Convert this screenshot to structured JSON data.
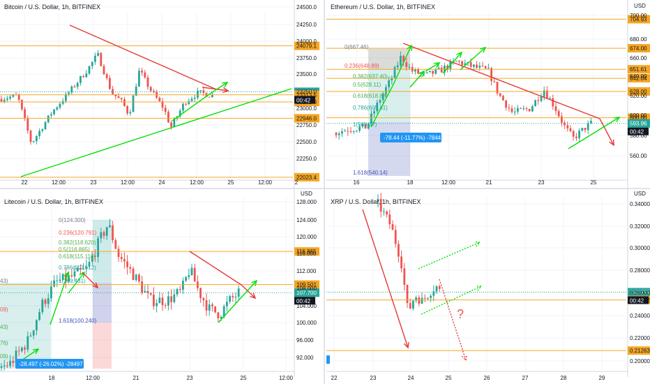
{
  "colors": {
    "up": "#26a69a",
    "down": "#ef5350",
    "level": "#f5a623",
    "trend_red": "#e53935",
    "trend_green": "#00e000",
    "grid": "#f0f3fa",
    "axis_text": "#131722",
    "price_blue": "#2196f3",
    "fib_green": "#4caf50"
  },
  "chart_data": [
    {
      "type": "candlestick",
      "title": "Bitcoin / U.S. Dollar, 1h, BITFINEX",
      "y_ticks": [
        "24500.0",
        "24250.0",
        "24000.0",
        "23750.0",
        "23500.0",
        "23250.0",
        "23000.0",
        "22750.0",
        "22500.0",
        "22250.0"
      ],
      "x_ticks": [
        "22",
        "12:00",
        "23",
        "12:00",
        "24",
        "12:00",
        "25",
        "12:00",
        "2"
      ],
      "ylim": [
        22000,
        24600
      ],
      "levels": [
        {
          "label": "24079.1",
          "value": 24079.1
        },
        {
          "label": "23361.0",
          "value": 23361.0,
          "highlight": true
        },
        {
          "label": "23313.5",
          "value": 23313.5
        },
        {
          "label": "23201.0",
          "value": 23201.0
        },
        {
          "label": "22946.0",
          "value": 22946.0
        },
        {
          "label": "22023.4",
          "value": 22023.4
        }
      ],
      "countdown": "00:42"
    },
    {
      "type": "candlestick",
      "title": "Ethereum / U.S. Dollar, 1h, BITFINEX",
      "currency": "USD",
      "y_ticks": [
        "700.00",
        "680.00",
        "660.00",
        "640.00",
        "620.00",
        "600.00",
        "580.00",
        "560.00",
        "540.00"
      ],
      "x_ticks": [
        "16",
        "18",
        "12:00",
        "21",
        "23",
        "25"
      ],
      "ylim": [
        535,
        712
      ],
      "levels": [
        {
          "label": "704.93",
          "value": 704.93
        },
        {
          "label": "674.00",
          "value": 674.0
        },
        {
          "label": "651.61",
          "value": 651.61
        },
        {
          "label": "642.04",
          "value": 642.04
        },
        {
          "label": "628.00",
          "value": 628.0
        },
        {
          "label": "600.00",
          "value": 600.0
        },
        {
          "label": "593.96",
          "value": 593.96,
          "highlight": true
        }
      ],
      "fib_labels": [
        "0(667.46)",
        "0.236(648.89)",
        "0.382(637.40)",
        "0.5(628.11)",
        "0.618(618.83)",
        "0.786(605.61)",
        "1(588.77)",
        "1.618(540.14)"
      ],
      "measure": "-78.44 (-11.77%) -7844",
      "countdown": "00:42"
    },
    {
      "type": "candlestick",
      "title": "Litecoin / U.S. Dollar, 1h, BITFINEX",
      "currency": "USD",
      "y_ticks": [
        "128.000",
        "124.000",
        "120.000",
        "116.000",
        "112.000",
        "108.000",
        "104.000",
        "100.000",
        "96.000",
        "92.000"
      ],
      "x_ticks": [
        "18",
        "12:00",
        "21",
        "23",
        "25",
        "12:00"
      ],
      "ylim": [
        90.5,
        129
      ],
      "levels": [
        {
          "label": "116.865",
          "value": 116.865
        },
        {
          "label": "109.501",
          "value": 109.501
        },
        {
          "label": "107.700",
          "value": 107.7,
          "highlight": true
        }
      ],
      "fib_labels": [
        "0(124.300)",
        "0.236(120.791)",
        "0.382(118.620)",
        "0.5(116.865)",
        "0.618(115.110)",
        "0.786(112.612)",
        "1(109.431)",
        "1.618(100.240)"
      ],
      "left_cut_labels": [
        "43)",
        "09)",
        "43)",
        "76)",
        "09)"
      ],
      "measure": "-28.497 (-26.02%) -28497",
      "countdown": "00:42"
    },
    {
      "type": "candlestick",
      "title": "XRP / U.S. Dollar, 1h, BITFINEX",
      "currency": "USD",
      "y_ticks": [
        "0.34000",
        "0.32000",
        "0.30000",
        "0.28000",
        "0.26000",
        "0.24000",
        "0.22000",
        "0.20000"
      ],
      "x_ticks": [
        "22",
        "23",
        "24",
        "25",
        "26",
        "27",
        "28",
        "29"
      ],
      "ylim": [
        0.196,
        0.344
      ],
      "levels": [
        {
          "label": "0.26259",
          "value": 0.26259,
          "highlight": true
        },
        {
          "label": "0.25592",
          "value": 0.25592
        },
        {
          "label": "0.21263",
          "value": 0.21263
        }
      ],
      "annotation": "?",
      "countdown": "00:42"
    }
  ]
}
